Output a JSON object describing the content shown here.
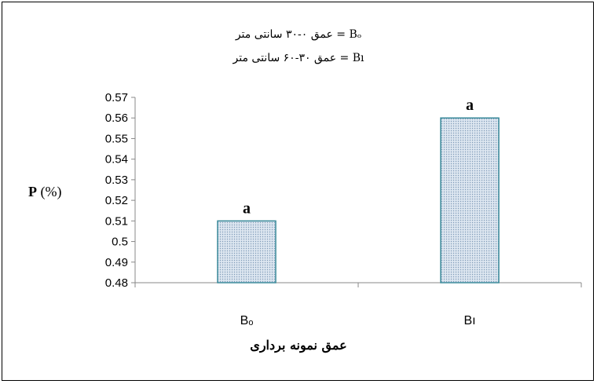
{
  "chart_data": {
    "type": "bar",
    "categories": [
      "Bₒ",
      "Bı"
    ],
    "values": [
      0.51,
      0.56
    ],
    "data_labels": [
      "a",
      "a"
    ],
    "xlabel": "عمق نمونه برداری",
    "ylabel_symbol": "P",
    "ylabel_unit": "(%)",
    "ylim": [
      0.48,
      0.57
    ],
    "yticks": [
      "0.57",
      "0.56",
      "0.55",
      "0.54",
      "0.53",
      "0.52",
      "0.51",
      "0.5",
      "0.49",
      "0.48"
    ],
    "legend": [
      "Bₒ = عمق ۰-۳۰ سانتی متر",
      "Bı = عمق ۳۰-۶۰ سانتی متر"
    ],
    "grid": false,
    "bar_fill": "#dde6f0",
    "bar_edge": "#3a8a9a"
  }
}
